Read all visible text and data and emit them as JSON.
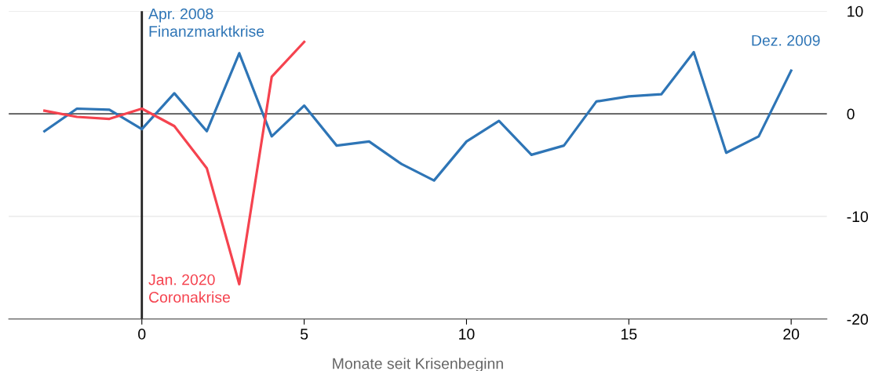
{
  "chart_data": {
    "type": "line",
    "xlabel": "Monate seit Krisenbeginn",
    "x": [
      -3,
      -2,
      -1,
      0,
      1,
      2,
      3,
      4,
      5,
      6,
      7,
      8,
      9,
      10,
      11,
      12,
      13,
      14,
      15,
      16,
      17,
      18,
      19,
      20
    ],
    "series": [
      {
        "name": "Apr. 2008\nFinanzmarktkrise",
        "color": "#2e75b6",
        "values": [
          -1.7,
          0.5,
          0.4,
          -1.5,
          2.0,
          -1.7,
          5.9,
          -2.2,
          0.8,
          -3.1,
          -2.7,
          -4.9,
          -6.5,
          -2.7,
          -0.7,
          -4.0,
          -3.1,
          1.2,
          1.7,
          1.9,
          6.0,
          -3.8,
          -2.2,
          4.2
        ]
      },
      {
        "name": "Jan. 2020\nCoronakrise",
        "color": "#f5434f",
        "values": [
          0.3,
          -0.3,
          -0.5,
          0.5,
          -1.2,
          -5.3,
          -16.6,
          3.6,
          7.0,
          null,
          null,
          null,
          null,
          null,
          null,
          null,
          null,
          null,
          null,
          null,
          null,
          null,
          null,
          null
        ]
      }
    ],
    "annotations": [
      {
        "text": "Dez. 2009",
        "x": 20,
        "y": 4.2
      }
    ],
    "xlim": [
      -4.1,
      21.1
    ],
    "xticks": [
      0,
      5,
      10,
      15,
      20
    ],
    "ylim": [
      -20,
      10
    ],
    "yticks": [
      -20,
      -10,
      0,
      10
    ],
    "ref_lines": [
      {
        "axis": "y",
        "value": 0,
        "color": "#555555"
      },
      {
        "axis": "x",
        "value": 0,
        "color": "#222222"
      }
    ],
    "grid": "y",
    "legend": false,
    "marker": "none",
    "line_style": "solid"
  }
}
